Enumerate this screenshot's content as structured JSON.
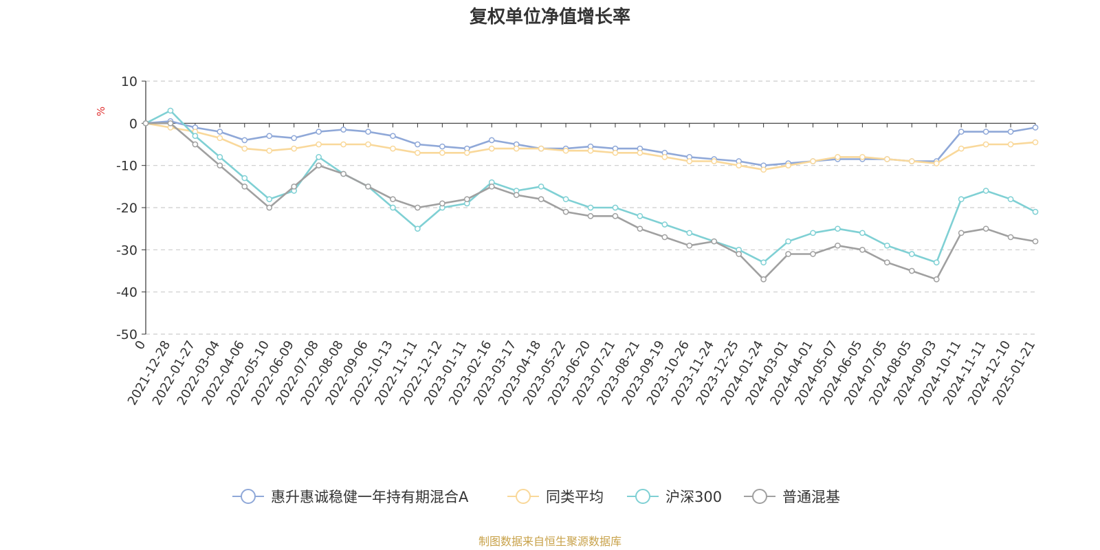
{
  "chart_data": {
    "type": "line",
    "title": "复权单位净值增长率",
    "ylabel": "%",
    "ylim": [
      -50,
      10
    ],
    "yticks": [
      10,
      0,
      -10,
      -20,
      -30,
      -40,
      -50
    ],
    "grid": true,
    "legend_position": "bottom",
    "x_categories": [
      "0",
      "2021-12-28",
      "2022-01-27",
      "2022-03-04",
      "2022-04-06",
      "2022-05-10",
      "2022-06-09",
      "2022-07-08",
      "2022-08-08",
      "2022-09-06",
      "2022-10-13",
      "2022-11-11",
      "2022-12-12",
      "2023-01-11",
      "2023-02-16",
      "2023-03-17",
      "2023-04-18",
      "2023-05-22",
      "2023-06-20",
      "2023-07-21",
      "2023-08-21",
      "2023-09-19",
      "2023-10-26",
      "2023-11-24",
      "2023-12-25",
      "2024-01-24",
      "2024-03-01",
      "2024-04-01",
      "2024-05-07",
      "2024-06-05",
      "2024-07-05",
      "2024-08-05",
      "2024-09-03",
      "2024-10-11",
      "2024-11-11",
      "2024-12-10",
      "2025-01-21"
    ],
    "series": [
      {
        "name": "惠升惠诚稳健一年持有期混合A",
        "color": "#8fa8d8",
        "values": [
          0,
          0.5,
          -1,
          -2,
          -4,
          -3,
          -3.5,
          -2,
          -1.5,
          -2,
          -3,
          -5,
          -5.5,
          -6,
          -4,
          -5,
          -6,
          -6,
          -5.5,
          -6,
          -6,
          -7,
          -8,
          -8.5,
          -9,
          -10,
          -9.5,
          -9,
          -8.5,
          -8.5,
          -8.5,
          -9,
          -9,
          -2,
          -2,
          -2,
          -1
        ]
      },
      {
        "name": "同类平均",
        "color": "#f9d89a",
        "values": [
          0,
          -1,
          -2,
          -3.5,
          -6,
          -6.5,
          -6,
          -5,
          -5,
          -5,
          -6,
          -7,
          -7,
          -7,
          -6,
          -6,
          -6,
          -6.5,
          -6.5,
          -7,
          -7,
          -8,
          -9,
          -9,
          -10,
          -11,
          -10,
          -9,
          -8,
          -8,
          -8.5,
          -9,
          -9.5,
          -6,
          -5,
          -5,
          -4.5
        ]
      },
      {
        "name": "沪深300",
        "color": "#7fd0d4",
        "values": [
          0,
          3,
          -3,
          -8,
          -13,
          -18,
          -16,
          -8,
          -12,
          -15,
          -20,
          -25,
          -20,
          -19,
          -14,
          -16,
          -15,
          -18,
          -20,
          -20,
          -22,
          -24,
          -26,
          -28,
          -30,
          -33,
          -28,
          -26,
          -25,
          -26,
          -29,
          -31,
          -33,
          -18,
          -16,
          -18,
          -21
        ]
      },
      {
        "name": "普通混基",
        "color": "#a0a0a0",
        "values": [
          0,
          0,
          -5,
          -10,
          -15,
          -20,
          -15,
          -10,
          -12,
          -15,
          -18,
          -20,
          -19,
          -18,
          -15,
          -17,
          -18,
          -21,
          -22,
          -22,
          -25,
          -27,
          -29,
          -28,
          -31,
          -37,
          -31,
          -31,
          -29,
          -30,
          -33,
          -35,
          -37,
          -26,
          -25,
          -27,
          -28
        ]
      }
    ]
  },
  "footer": {
    "source": "制图数据来自恒生聚源数据库"
  }
}
